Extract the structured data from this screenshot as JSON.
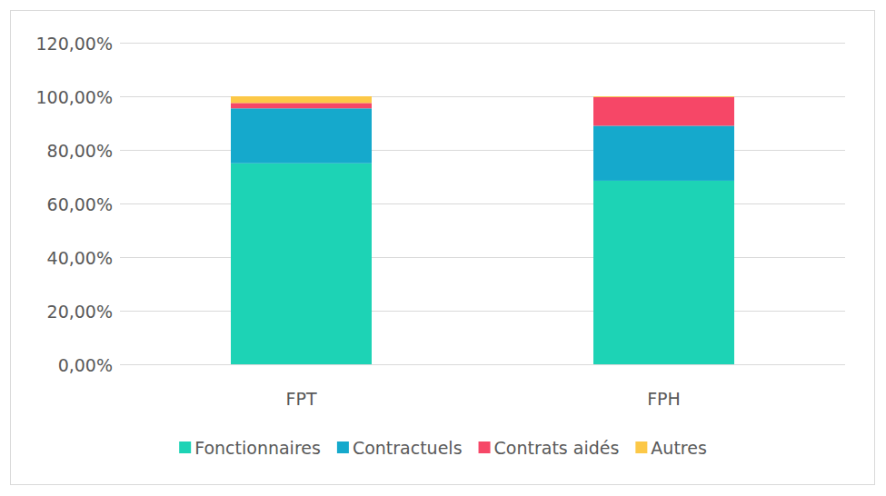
{
  "chart_data": {
    "type": "bar",
    "stacked": true,
    "grid": true,
    "legend": "bottom",
    "categories": [
      "FPT",
      "FPH"
    ],
    "series": [
      {
        "name": "Fonctionnaires",
        "color": "#1dd3b5",
        "values": [
          75,
          68.5
        ]
      },
      {
        "name": "Contractuels",
        "color": "#15a9cc",
        "values": [
          20.5,
          20.5
        ]
      },
      {
        "name": "Contrats aidés",
        "color": "#f64767",
        "values": [
          2,
          10.7
        ]
      },
      {
        "name": "Autres",
        "color": "#fcc847",
        "values": [
          2.5,
          0.3
        ]
      }
    ],
    "ylim": [
      0,
      120
    ],
    "yticks": [
      {
        "value": 0,
        "label": "0,00%"
      },
      {
        "value": 20,
        "label": "20,00%"
      },
      {
        "value": 40,
        "label": "40,00%"
      },
      {
        "value": 60,
        "label": "60,00%"
      },
      {
        "value": 80,
        "label": "80,00%"
      },
      {
        "value": 100,
        "label": "100,00%"
      },
      {
        "value": 120,
        "label": "120,00%"
      }
    ]
  }
}
